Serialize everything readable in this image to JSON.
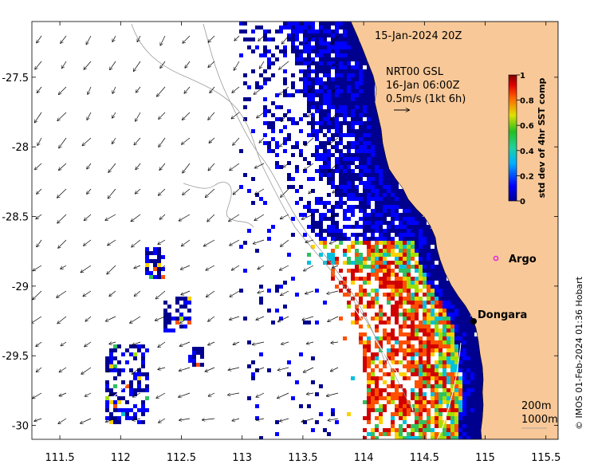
{
  "map": {
    "timestamp": "15-Jan-2024 20Z",
    "current_source": "NRT00 GSL",
    "current_time": "16-Jan 06:00Z",
    "vector_scale_label": "0.5m/s (1kt 6h)",
    "contour_label_1": "200m",
    "contour_label_2": "1000m",
    "copyright": "© IMOS 01-Feb-2024 01:36 Hobart",
    "places": [
      {
        "name": "Argo",
        "lon": 115.12,
        "lat": -28.83,
        "marker": "circle",
        "color": "#e020e0"
      },
      {
        "name": "Dongara",
        "lon": 114.93,
        "lat": -29.25,
        "marker": "dot",
        "color": "#000000"
      }
    ],
    "colors": {
      "land": "#f8c898",
      "ocean": "#ffffff",
      "coast_outline": "#000000"
    }
  },
  "axes": {
    "x_ticks": [
      "111.5",
      "112",
      "112.5",
      "113",
      "113.5",
      "114",
      "114.5",
      "115",
      "115.5"
    ],
    "y_ticks": [
      "-27.5",
      "-28",
      "-28.5",
      "-29",
      "-29.5",
      "-30"
    ],
    "x_range": [
      111.27,
      115.6
    ],
    "y_range": [
      -30.1,
      -27.1
    ]
  },
  "colorbar": {
    "title": "std dev of 4hr SST comp",
    "ticks": [
      "1",
      "0.8",
      "0.6",
      "0.4",
      "0.2",
      "0"
    ],
    "range": [
      0,
      1
    ],
    "colormap": "jet-like (dark blue → blue → cyan → green → yellow → orange → red → dark red)"
  }
}
